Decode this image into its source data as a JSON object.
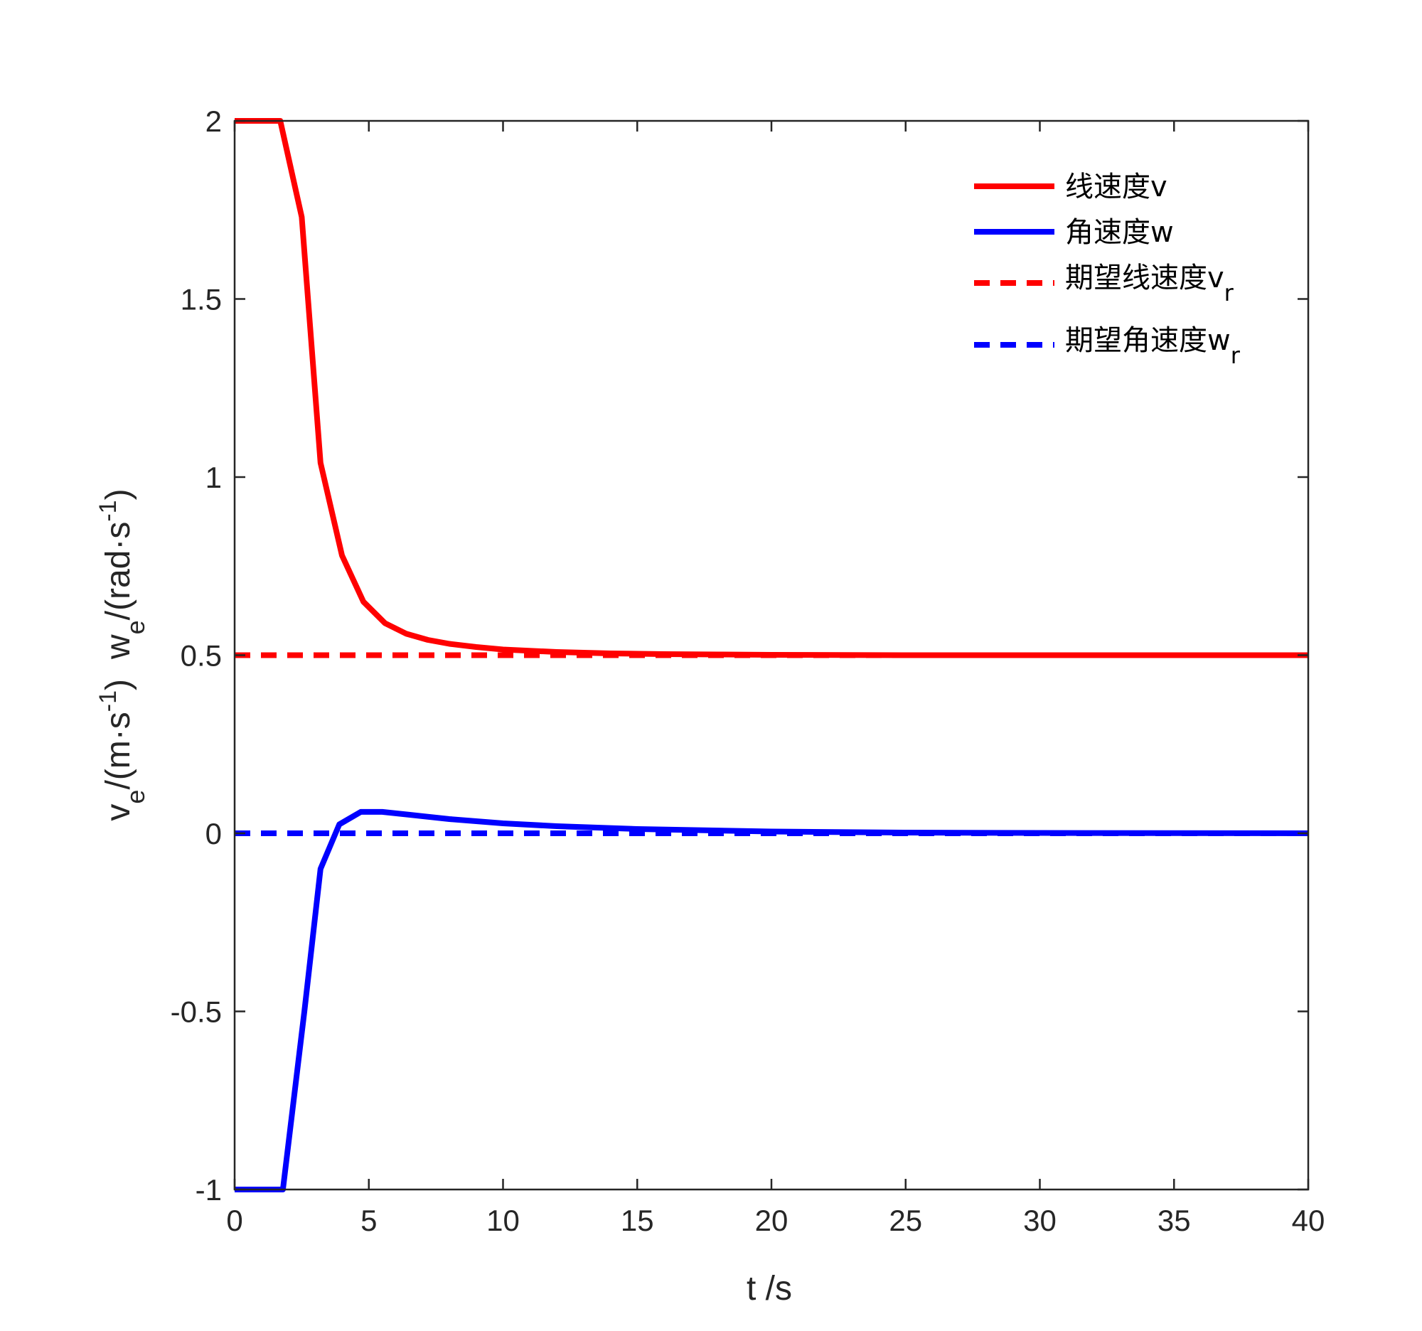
{
  "chart_data": {
    "type": "line",
    "title": "",
    "xlabel": "t /s",
    "ylabel": {
      "v_main": "v",
      "v_sub": "e",
      "v_unit": "/(m·s",
      "v_sup": "-1",
      "v_close": ")",
      "w_main": "w",
      "w_sub": "e",
      "w_unit": "/(rad·s",
      "w_sup": "-1",
      "w_close": ")"
    },
    "xlim": [
      0,
      40
    ],
    "ylim": [
      -1,
      2
    ],
    "xticks": [
      "0",
      "5",
      "10",
      "15",
      "20",
      "25",
      "30",
      "35",
      "40"
    ],
    "yticks": [
      "-1",
      "-0.5",
      "0",
      "0.5",
      "1",
      "1.5",
      "2"
    ],
    "grid": false,
    "legend_position": "top-right",
    "series": [
      {
        "name": "线速度v",
        "color": "#ff0000",
        "style": "solid",
        "x": [
          0,
          1.7,
          2.5,
          3.2,
          4.0,
          4.8,
          5.6,
          6.4,
          7.2,
          8.0,
          9.0,
          10.0,
          12.0,
          14.0,
          16.0,
          18.0,
          20.0,
          25.0,
          30.0,
          40.0
        ],
        "y": [
          2.0,
          2.0,
          1.73,
          1.04,
          0.78,
          0.65,
          0.59,
          0.56,
          0.543,
          0.532,
          0.523,
          0.516,
          0.509,
          0.505,
          0.503,
          0.502,
          0.501,
          0.5,
          0.5,
          0.5
        ]
      },
      {
        "name": "角速度w",
        "color": "#0000ff",
        "style": "solid",
        "x": [
          0,
          1.8,
          2.6,
          3.2,
          3.9,
          4.7,
          5.5,
          6.5,
          8.0,
          10.0,
          12.0,
          15.0,
          20.0,
          25.0,
          30.0,
          40.0
        ],
        "y": [
          -1.0,
          -1.0,
          -0.5,
          -0.1,
          0.025,
          0.06,
          0.06,
          0.052,
          0.04,
          0.028,
          0.02,
          0.012,
          0.005,
          0.002,
          0.001,
          0.0
        ]
      },
      {
        "name": "期望线速度v",
        "name_sub": "r",
        "color": "#ff0000",
        "style": "dashed",
        "x": [
          0,
          40
        ],
        "y": [
          0.5,
          0.5
        ]
      },
      {
        "name": "期望角速度w",
        "name_sub": "r",
        "color": "#0000ff",
        "style": "dashed",
        "x": [
          0,
          40
        ],
        "y": [
          0,
          0
        ]
      }
    ]
  }
}
